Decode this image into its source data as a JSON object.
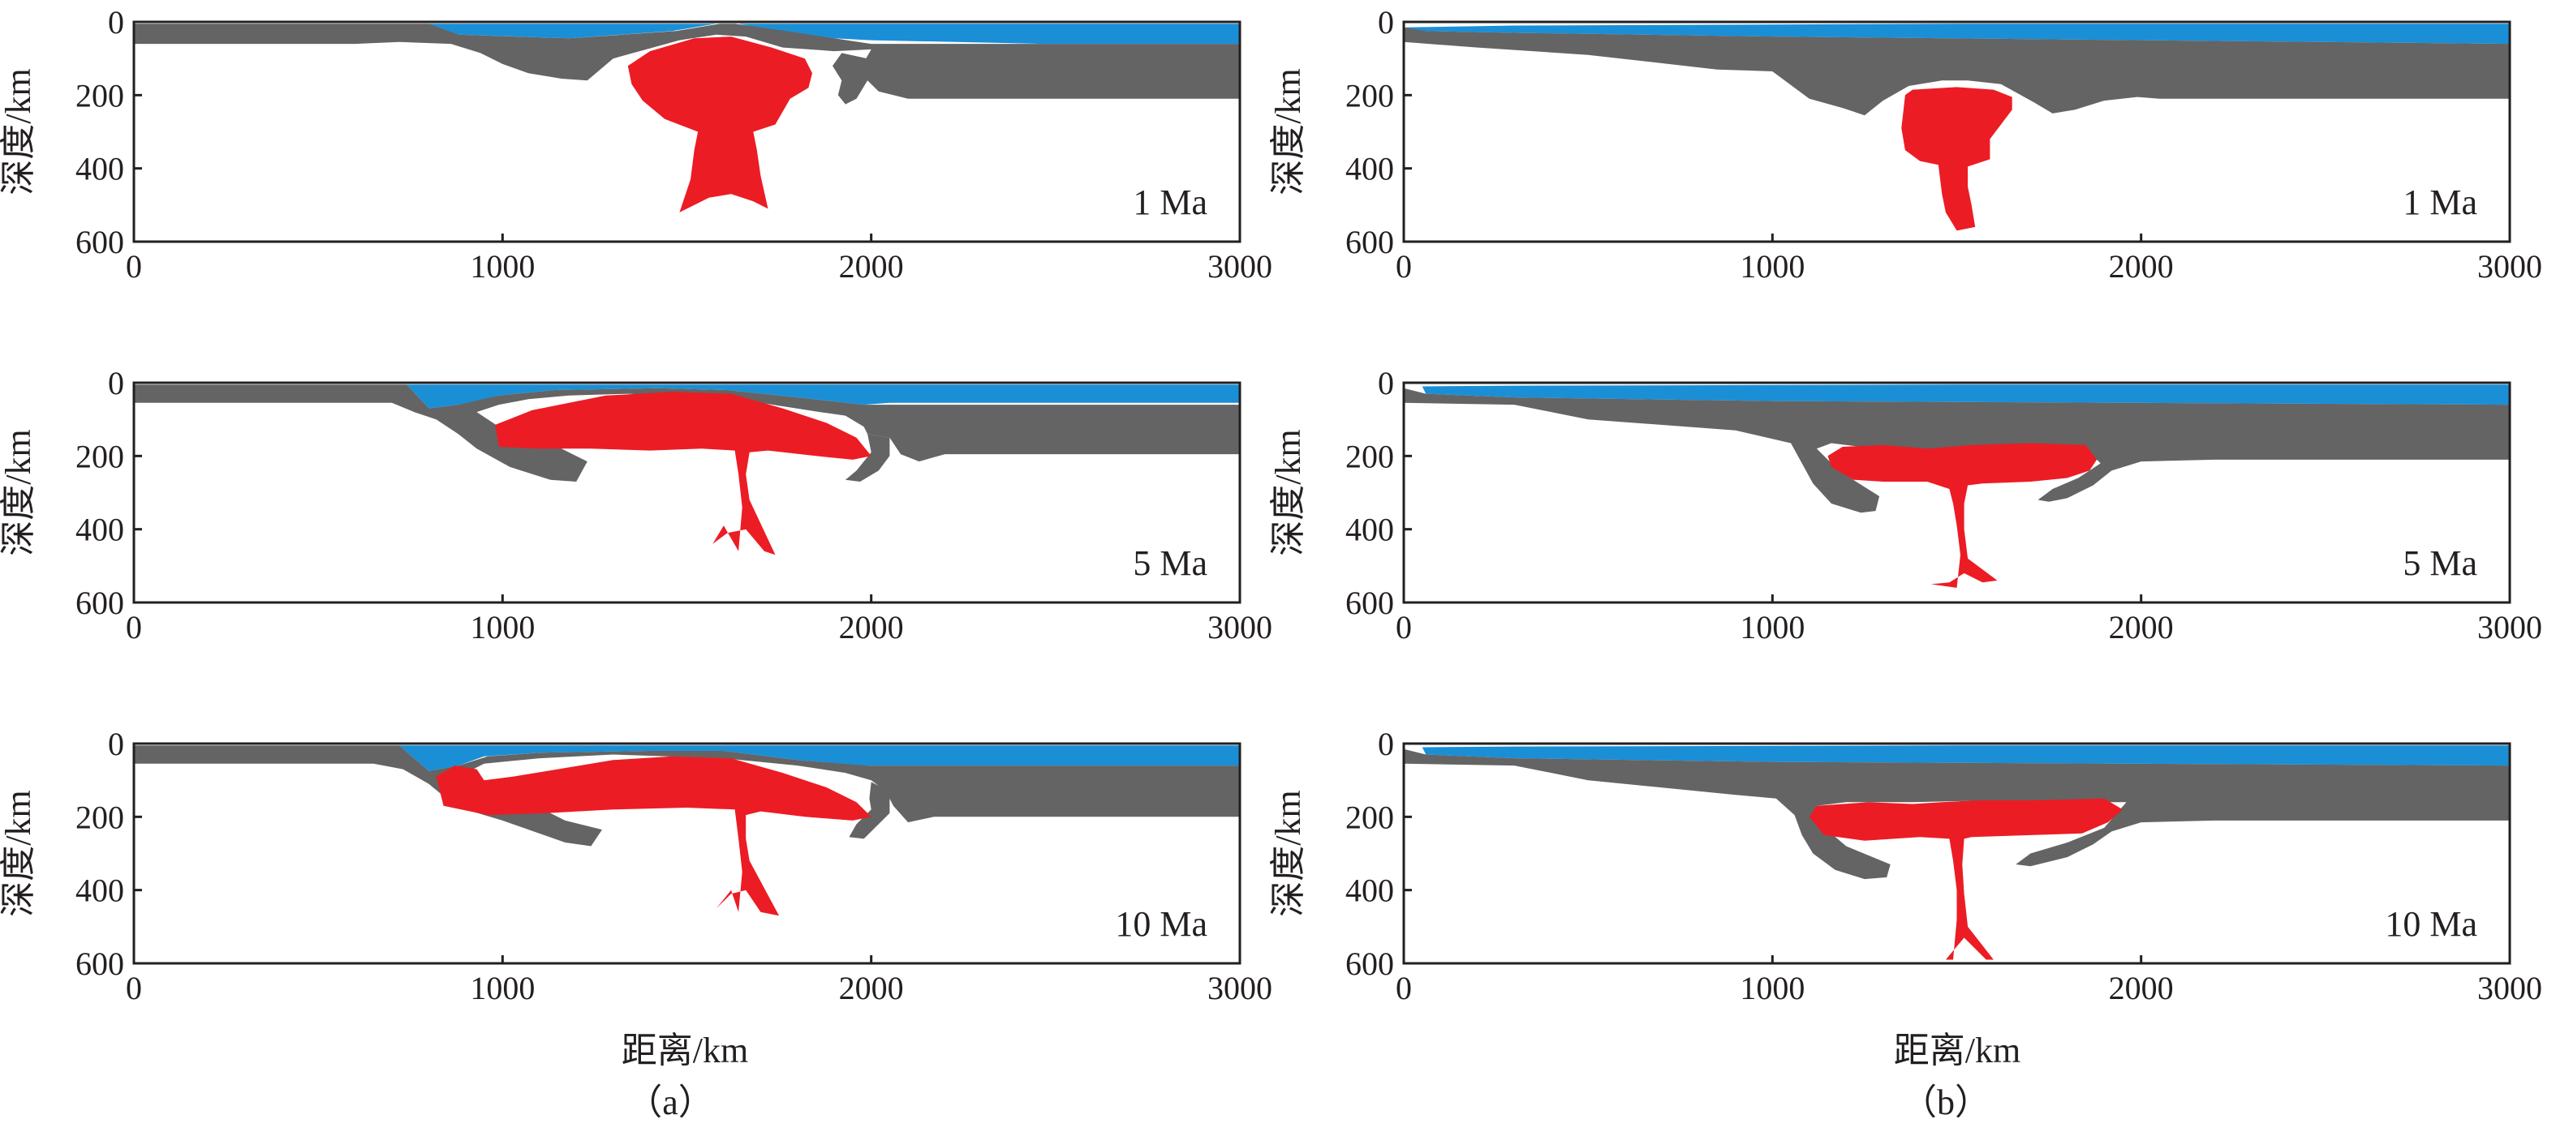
{
  "colors": {
    "water": "#1a8fd6",
    "lithosphere": "#646464",
    "plume": "#ec1c24",
    "axis": "#231f20"
  },
  "axes": {
    "xlabel": "距离/km",
    "ylabel": "深度/km",
    "x_range": [
      0,
      3000
    ],
    "y_range": [
      0,
      600
    ],
    "x_ticks": [
      "0",
      "1000",
      "2000",
      "3000"
    ],
    "y_ticks": [
      "0",
      "200",
      "400",
      "600"
    ]
  },
  "columns": [
    {
      "label": "（a）"
    },
    {
      "label": "（b）"
    }
  ],
  "panels": [
    {
      "column": "a",
      "time": "1 Ma",
      "shape_ref": "a1"
    },
    {
      "column": "a",
      "time": "5 Ma",
      "shape_ref": "a2"
    },
    {
      "column": "a",
      "time": "10 Ma",
      "shape_ref": "a3"
    },
    {
      "column": "b",
      "time": "1 Ma",
      "shape_ref": "b1"
    },
    {
      "column": "b",
      "time": "5 Ma",
      "shape_ref": "b2"
    },
    {
      "column": "b",
      "time": "10 Ma",
      "shape_ref": "b3"
    }
  ]
}
